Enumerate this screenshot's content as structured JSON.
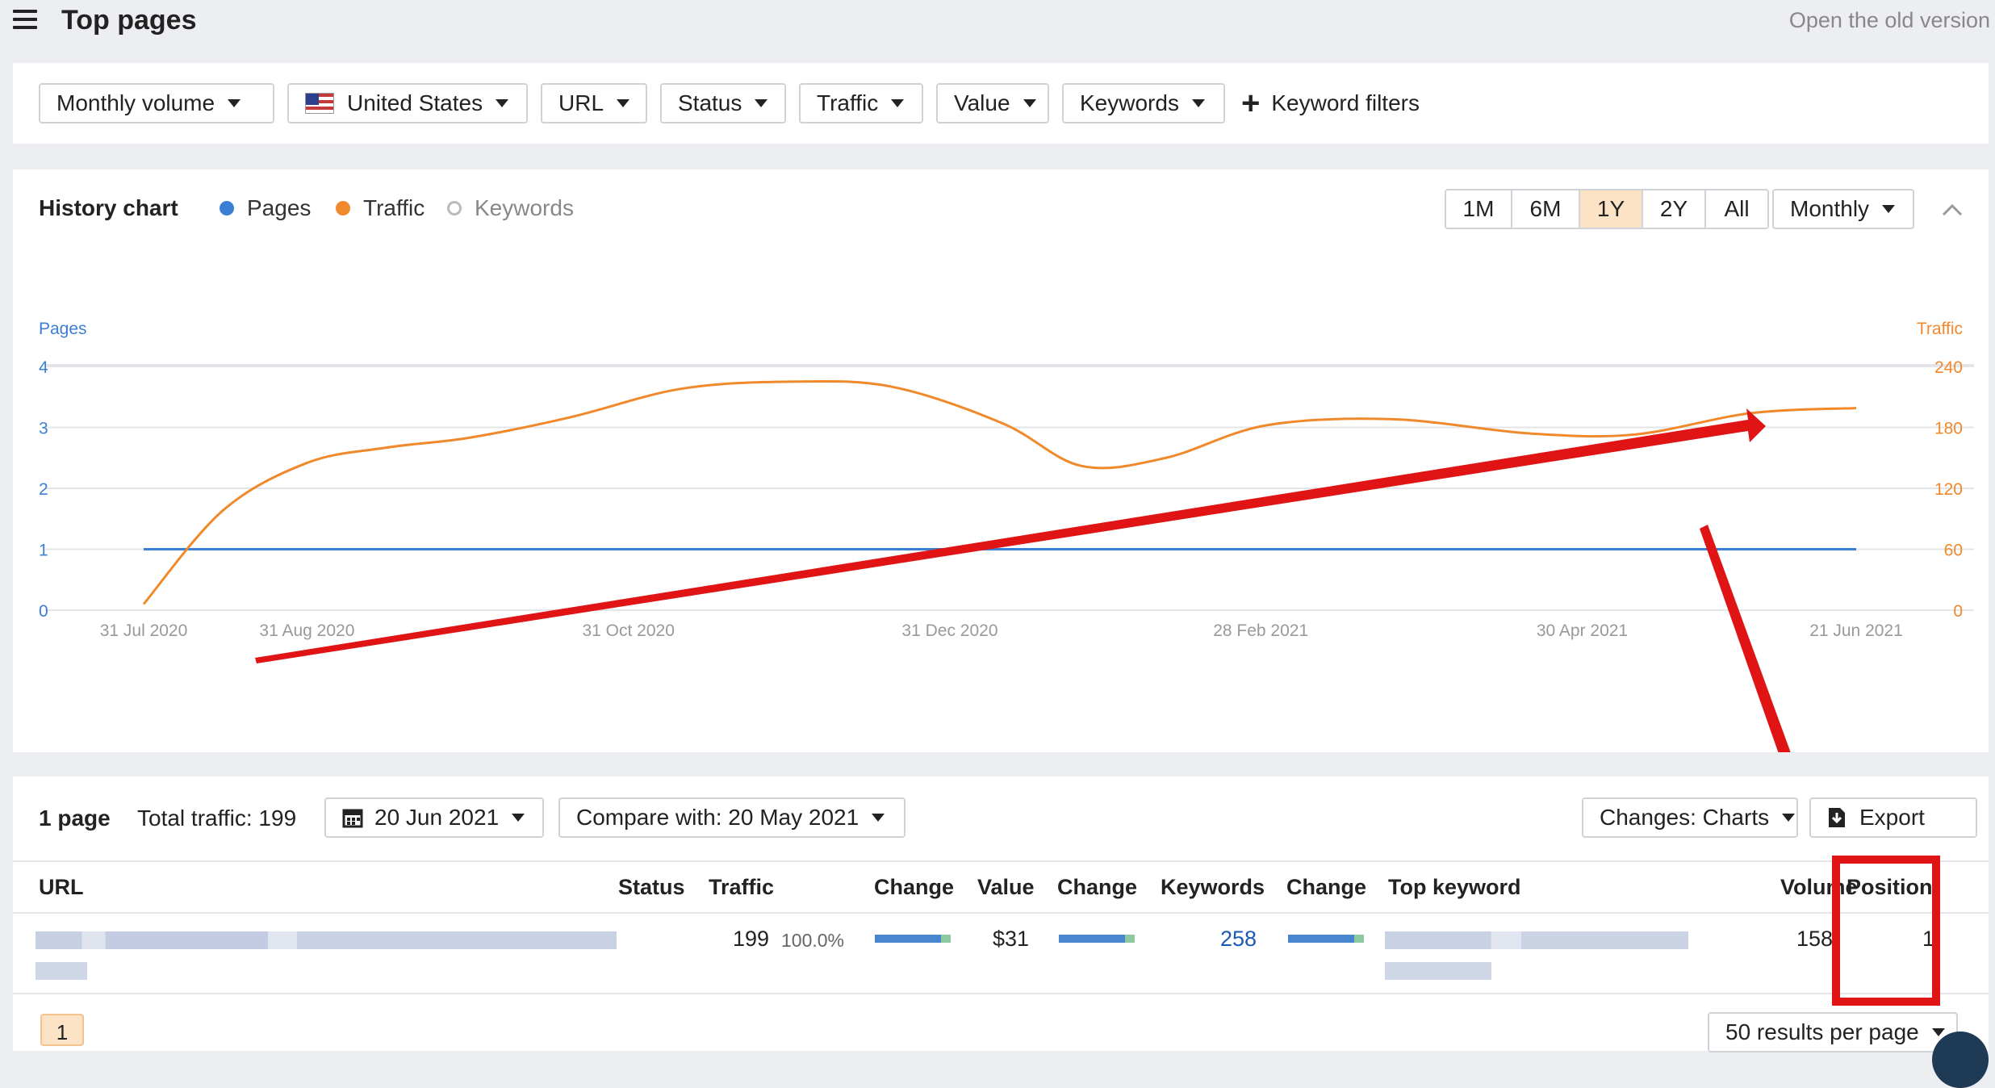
{
  "header": {
    "title": "Top pages",
    "old_version_link": "Open the old version"
  },
  "filters": {
    "items": [
      "Monthly volume",
      "United States",
      "URL",
      "Status",
      "Traffic",
      "Value",
      "Keywords"
    ],
    "keyword_filters": "Keyword filters"
  },
  "history": {
    "title": "History chart",
    "legend": [
      {
        "label": "Pages",
        "color": "#3b7fd4"
      },
      {
        "label": "Traffic",
        "color": "#f0892b"
      },
      {
        "label": "Keywords",
        "color": "#bbbbbb"
      }
    ],
    "ranges": [
      "1M",
      "6M",
      "1Y",
      "2Y",
      "All"
    ],
    "active_range": "1Y",
    "interval": "Monthly"
  },
  "chart_data": {
    "type": "line",
    "x_ticks": [
      "31 Jul 2020",
      "31 Aug 2020",
      "31 Oct 2020",
      "31 Dec 2020",
      "28 Feb 2021",
      "30 Apr 2021",
      "21 Jun 2021"
    ],
    "left_axis": {
      "label": "Pages",
      "ticks": [
        "0",
        "1",
        "2",
        "3",
        "4"
      ],
      "range": [
        0,
        4
      ]
    },
    "right_axis": {
      "label": "Traffic",
      "ticks": [
        "0",
        "60",
        "120",
        "180",
        "240"
      ],
      "range": [
        0,
        240
      ]
    },
    "series": [
      {
        "name": "Pages",
        "axis": "left",
        "color": "#3b7fd4",
        "x": [
          "2020-07-31",
          "2021-06-21"
        ],
        "y": [
          1,
          1
        ]
      },
      {
        "name": "Traffic",
        "axis": "right",
        "color": "#f0892b",
        "x": [
          "2020-07-31",
          "2020-08-15",
          "2020-08-31",
          "2020-09-15",
          "2020-10-01",
          "2020-10-20",
          "2020-11-10",
          "2020-12-01",
          "2020-12-20",
          "2021-01-10",
          "2021-01-25",
          "2021-02-10",
          "2021-03-01",
          "2021-03-25",
          "2021-04-20",
          "2021-05-10",
          "2021-06-01",
          "2021-06-21"
        ],
        "y": [
          6,
          98,
          145,
          160,
          170,
          190,
          218,
          225,
          220,
          184,
          142,
          150,
          182,
          188,
          174,
          173,
          194,
          199
        ]
      }
    ],
    "grid": true
  },
  "table": {
    "page_count": "1 page",
    "total_traffic": "Total traffic: 199",
    "date": "20 Jun 2021",
    "compare": "Compare with: 20 May 2021",
    "changes": "Changes: Charts",
    "export": "Export",
    "columns": [
      "URL",
      "Status",
      "Traffic",
      "Change",
      "Value",
      "Change",
      "Keywords",
      "Change",
      "Top keyword",
      "Volume",
      "Position"
    ],
    "rows": [
      {
        "traffic": "199",
        "traffic_pct": "100.0%",
        "value": "$31",
        "keywords": "258",
        "volume": "158",
        "position": "1"
      }
    ],
    "page": "1",
    "per_page": "50 results per page"
  }
}
